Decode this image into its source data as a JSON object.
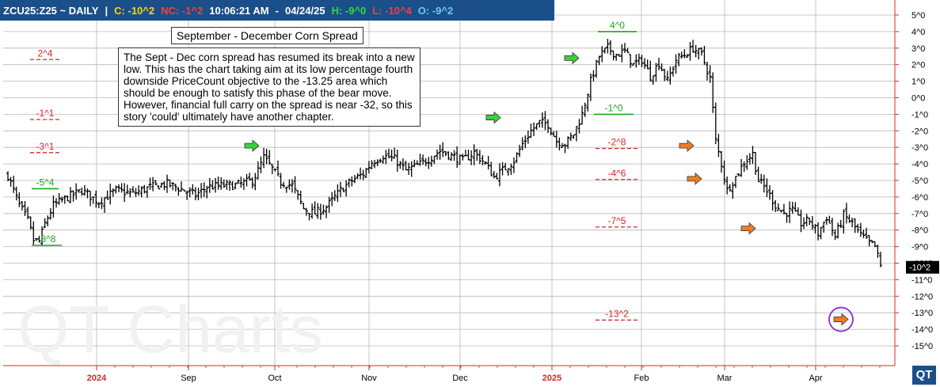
{
  "header": {
    "symbol": "ZCU25:Z25 ~ DAILY",
    "sep": "|",
    "close": "C: -10^2",
    "net_change": "NC: -1^2",
    "time": "10:06:21 AM",
    "dash": "-",
    "date": "04/24/25",
    "high": "H: -9^0",
    "low": "L: -10^4",
    "open": "O: -9^2",
    "colors": {
      "bar": "#1b4f8a",
      "close": "#ffd700",
      "nc": "#ff3b3b",
      "high": "#33dd33",
      "low": "#ff3b3b",
      "open": "#6ec6ff"
    }
  },
  "title": "September - December Corn Spread",
  "note": "The Sept - Dec corn spread has resumed its break into a new low.  This has the chart taking aim at its low percentage fourth downside PriceCount objective to the -13.25 area which should be enough to satisfy this phase of the bear move.  However, financial full carry on the spread is near -32, so this story 'could' ultimately have another chapter.",
  "watermark": "QT Charts",
  "logo": "QT",
  "chart_data": {
    "type": "bar",
    "style": "ohlc",
    "y_axis": {
      "ticks": [
        "5^0",
        "4^0",
        "3^0",
        "2^0",
        "1^0",
        "0^0",
        "-1^0",
        "-2^0",
        "-3^0",
        "-4^0",
        "-5^0",
        "-6^0",
        "-7^0",
        "-8^0",
        "-9^0",
        "-10^0",
        "-11^0",
        "-12^0",
        "-13^0",
        "-14^0",
        "-15^0"
      ],
      "tick_values": [
        5,
        4,
        3,
        2,
        1,
        0,
        -1,
        -2,
        -3,
        -4,
        -5,
        -6,
        -7,
        -8,
        -9,
        -10,
        -11,
        -12,
        -13,
        -14,
        -15
      ],
      "ylim": [
        -15.5,
        5.5
      ],
      "position": "right",
      "last_price_label": "-10^2",
      "last_price_value": -10.25
    },
    "x_axis": {
      "labels": [
        "2024",
        "Sep",
        "Oct",
        "Nov",
        "Dec",
        "2025",
        "Feb",
        "Mar",
        "Apr"
      ],
      "year_labels": [
        "2024",
        "2025"
      ]
    },
    "grid": true,
    "series": [
      {
        "anchors": [
          [
            0,
            -4.7
          ],
          [
            4,
            -6.5
          ],
          [
            7,
            -7.4
          ],
          [
            9,
            -8.6
          ],
          [
            11,
            -8.7
          ],
          [
            13,
            -7.6
          ],
          [
            16,
            -6.5
          ],
          [
            20,
            -6.1
          ],
          [
            26,
            -5.6
          ],
          [
            32,
            -6.3
          ],
          [
            38,
            -5.6
          ],
          [
            44,
            -5.8
          ],
          [
            50,
            -5.4
          ],
          [
            56,
            -5.2
          ],
          [
            62,
            -5.6
          ],
          [
            66,
            -5.9
          ],
          [
            70,
            -5.4
          ],
          [
            75,
            -5.3
          ],
          [
            80,
            -5.3
          ],
          [
            86,
            -5.0
          ],
          [
            88,
            -4.4
          ],
          [
            90,
            -3.6
          ],
          [
            93,
            -4.3
          ],
          [
            96,
            -5.1
          ],
          [
            100,
            -5.3
          ],
          [
            104,
            -6.7
          ],
          [
            108,
            -7.0
          ],
          [
            112,
            -6.6
          ],
          [
            117,
            -5.6
          ],
          [
            121,
            -5.0
          ],
          [
            125,
            -4.6
          ],
          [
            128,
            -3.9
          ],
          [
            132,
            -3.5
          ],
          [
            136,
            -3.7
          ],
          [
            140,
            -4.4
          ],
          [
            144,
            -4.1
          ],
          [
            148,
            -3.7
          ],
          [
            152,
            -3.2
          ],
          [
            156,
            -3.5
          ],
          [
            160,
            -3.8
          ],
          [
            164,
            -3.3
          ],
          [
            168,
            -4.0
          ],
          [
            171,
            -4.8
          ],
          [
            174,
            -4.4
          ],
          [
            178,
            -3.8
          ],
          [
            181,
            -2.8
          ],
          [
            184,
            -2.0
          ],
          [
            187,
            -1.5
          ],
          [
            190,
            -1.6
          ],
          [
            193,
            -2.6
          ],
          [
            196,
            -2.8
          ],
          [
            199,
            -2.2
          ],
          [
            202,
            -1.0
          ],
          [
            205,
            1.0
          ],
          [
            208,
            2.5
          ],
          [
            211,
            3.0
          ],
          [
            214,
            2.6
          ],
          [
            217,
            2.8
          ],
          [
            220,
            2.0
          ],
          [
            223,
            2.3
          ],
          [
            226,
            1.3
          ],
          [
            229,
            2.1
          ],
          [
            232,
            1.0
          ],
          [
            235,
            2.3
          ],
          [
            238,
            2.6
          ],
          [
            241,
            3.0
          ],
          [
            244,
            2.6
          ],
          [
            247,
            1.2
          ],
          [
            249,
            -2.6
          ],
          [
            251,
            -4.0
          ],
          [
            253,
            -5.6
          ],
          [
            256,
            -4.8
          ],
          [
            259,
            -3.9
          ],
          [
            262,
            -3.4
          ],
          [
            264,
            -5.0
          ],
          [
            267,
            -5.6
          ],
          [
            270,
            -6.5
          ],
          [
            273,
            -7.0
          ],
          [
            276,
            -6.8
          ],
          [
            279,
            -7.6
          ],
          [
            282,
            -7.4
          ],
          [
            285,
            -8.2
          ],
          [
            288,
            -7.2
          ],
          [
            291,
            -8.4
          ],
          [
            294,
            -7.1
          ],
          [
            297,
            -7.6
          ],
          [
            300,
            -8.3
          ],
          [
            303,
            -8.8
          ],
          [
            305,
            -9.0
          ],
          [
            307,
            -10.2
          ]
        ],
        "count": 308,
        "seed": 7
      }
    ],
    "pricecount_targets": [
      {
        "label": "2^4",
        "value": 2.5
      },
      {
        "label": "-1^1",
        "value": -1.125
      },
      {
        "label": "-3^1",
        "value": -3.125
      },
      {
        "label": "-2^8",
        "value": -2.875
      },
      {
        "label": "-4^6",
        "value": -4.75
      },
      {
        "label": "-7^5",
        "value": -7.625
      },
      {
        "label": "-13^2",
        "value": -13.25
      }
    ],
    "swing_labels": [
      {
        "label": "-5^4",
        "value": -5.5
      },
      {
        "label": "-8^8",
        "value": -8.875
      },
      {
        "label": "4^0",
        "value": 4.0
      },
      {
        "label": "-1^0",
        "value": -1.0
      }
    ],
    "colors": {
      "bars": "#000000",
      "grid": "#b8b8b8",
      "target": "#d62828",
      "swing": "#1aa81a",
      "arrow_green": "#3ad13a",
      "arrow_orange": "#f07b22",
      "circle": "#8e2bd1",
      "year_label": "#d62828"
    }
  }
}
